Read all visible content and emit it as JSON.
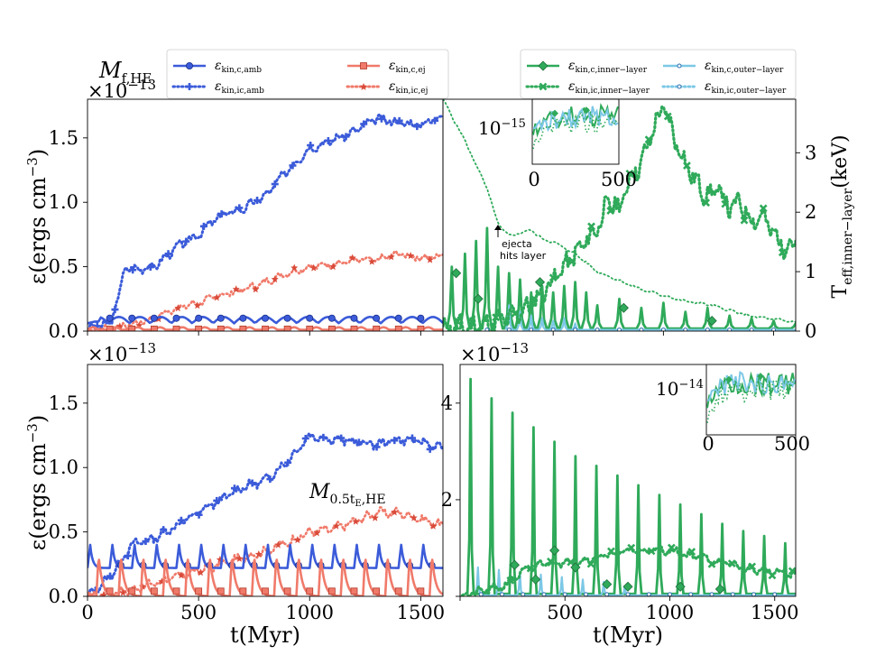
{
  "colors": {
    "amb": "#3b5bd9",
    "ej": "#f07a6a",
    "ej_dark": "#d94b3a",
    "inner": "#2faa5a",
    "outer": "#7cc8e6",
    "outer_dark": "#2a6fb0"
  },
  "legend": {
    "left": [
      {
        "label": "ε",
        "sub": "kin,c,amb"
      },
      {
        "label": "ε",
        "sub": "kin,ic,amb"
      },
      {
        "label": "ε",
        "sub": "kin,c,ej"
      },
      {
        "label": "ε",
        "sub": "kin,ic,ej"
      }
    ],
    "right": [
      {
        "label": "ε",
        "sub": "kin,c,inner−layer"
      },
      {
        "label": "ε",
        "sub": "kin,ic,inner−layer"
      },
      {
        "label": "ε",
        "sub": "kin,c,outer−layer"
      },
      {
        "label": "ε",
        "sub": "kin,ic,outer−layer"
      }
    ]
  },
  "labels": {
    "top_title_main": "M",
    "top_title_sub": "f,HE",
    "bottom_title_main": "M",
    "bottom_title_sub": "0.5t",
    "bottom_title_sub2": "E",
    "bottom_title_sub3": ",HE",
    "ylabel": "ε(ergs cm",
    "ylabel_exp": "−3",
    "ylabel_close": ")",
    "xlabel": "t(Myr)",
    "right_ylabel": "T",
    "right_ylabel_sub": "eff,inner−layer",
    "right_ylabel_unit": "(keV)",
    "multiplier": "×10",
    "multiplier_exp": "−13",
    "annotation_line1": "ejecta",
    "annotation_line2": "hits layer",
    "inset_top_label": "10",
    "inset_top_exp": "−15",
    "inset_bottom_label": "10",
    "inset_bottom_exp": "−14"
  },
  "chart_data": [
    {
      "panel": "top-left",
      "type": "line",
      "xlim": [
        0,
        1600
      ],
      "ylim": [
        0,
        1.8
      ],
      "yscale_note": "×10^-13",
      "xticks": [],
      "yticks": [
        "0.0",
        "0.5",
        "1.0",
        "1.5"
      ],
      "series": [
        {
          "name": "ε kin,ic,amb",
          "style": "dotted",
          "color_key": "amb",
          "x": [
            0,
            100,
            130,
            170,
            200,
            300,
            400,
            500,
            550,
            600,
            700,
            800,
            900,
            1000,
            1100,
            1200,
            1300,
            1400,
            1500,
            1600
          ],
          "values": [
            0.02,
            0.05,
            0.2,
            0.5,
            0.48,
            0.5,
            0.65,
            0.75,
            0.83,
            0.9,
            0.95,
            1.05,
            1.25,
            1.42,
            1.48,
            1.55,
            1.65,
            1.62,
            1.6,
            1.68
          ]
        },
        {
          "name": "ε kin,ic,ej",
          "style": "dotted",
          "color_key": "ej",
          "x": [
            0,
            200,
            300,
            400,
            500,
            600,
            700,
            800,
            900,
            1000,
            1100,
            1200,
            1300,
            1400,
            1500,
            1600
          ],
          "values": [
            0.0,
            0.05,
            0.1,
            0.18,
            0.22,
            0.28,
            0.32,
            0.38,
            0.45,
            0.5,
            0.52,
            0.55,
            0.55,
            0.6,
            0.57,
            0.58
          ]
        },
        {
          "name": "ε kin,c,amb",
          "style": "solid",
          "color_key": "amb",
          "x": [
            0,
            100,
            200,
            300,
            400,
            500,
            600,
            700,
            800,
            900,
            1000,
            1100,
            1200,
            1300,
            1400,
            1500,
            1600
          ],
          "values": [
            0.05,
            0.08,
            0.12,
            0.09,
            0.1,
            0.11,
            0.1,
            0.09,
            0.1,
            0.1,
            0.09,
            0.1,
            0.1,
            0.09,
            0.1,
            0.09,
            0.07
          ]
        },
        {
          "name": "ε kin,c,ej",
          "style": "solid",
          "color_key": "ej",
          "x": [
            0,
            200,
            400,
            600,
            800,
            1000,
            1200,
            1400,
            1600
          ],
          "values": [
            0.0,
            0.02,
            0.02,
            0.02,
            0.02,
            0.02,
            0.02,
            0.02,
            0.02
          ]
        }
      ]
    },
    {
      "panel": "top-right",
      "type": "line",
      "xlim": [
        0,
        1600
      ],
      "ylim": [
        0,
        1.8
      ],
      "right_axis": {
        "label": "T eff,inner−layer (keV)",
        "ylim": [
          0,
          3.9
        ],
        "yticks": [
          "0",
          "1",
          "2",
          "3"
        ]
      },
      "series": [
        {
          "name": "ε kin,c,inner−layer",
          "style": "solid",
          "color_key": "inner",
          "peaks_x": [
            40,
            100,
            150,
            200,
            250,
            300,
            350,
            400,
            450,
            500,
            550,
            600,
            650,
            700,
            800,
            900,
            1000,
            1100,
            1200,
            1300,
            1400,
            1500,
            1600
          ],
          "peaks_y": [
            0.5,
            0.6,
            0.7,
            0.8,
            0.5,
            0.45,
            0.4,
            0.3,
            0.35,
            0.3,
            0.35,
            0.38,
            0.3,
            0.2,
            0.25,
            0.18,
            0.22,
            0.15,
            0.18,
            0.12,
            0.1,
            0.08,
            0.06
          ]
        },
        {
          "name": "ε kin,ic,inner−layer",
          "style": "dotted",
          "color_key": "inner",
          "x": [
            0,
            200,
            300,
            400,
            500,
            600,
            700,
            750,
            800,
            850,
            900,
            950,
            1000,
            1050,
            1100,
            1150,
            1200,
            1250,
            1300,
            1350,
            1400,
            1450,
            1500,
            1550,
            1600
          ],
          "values": [
            0.02,
            0.05,
            0.1,
            0.2,
            0.4,
            0.6,
            0.8,
            1.0,
            0.95,
            1.2,
            1.3,
            1.55,
            1.75,
            1.5,
            1.3,
            1.15,
            1.05,
            1.1,
            0.95,
            1.0,
            0.85,
            0.9,
            0.75,
            0.65,
            0.7
          ]
        },
        {
          "name": "ε kin,c,outer−layer",
          "style": "solid",
          "color_key": "outer",
          "peaks_x": [
            300,
            350,
            400,
            450,
            500,
            550,
            600
          ],
          "peaks_y": [
            0.2,
            0.15,
            0.12,
            0.1,
            0.08,
            0.1,
            0.06
          ]
        },
        {
          "name": "T eff,inner−layer",
          "style": "dotted",
          "color_key": "inner",
          "axis": "right",
          "x": [
            0,
            100,
            200,
            250,
            300,
            350,
            400,
            450,
            500,
            600,
            700,
            800,
            900,
            1000,
            1100,
            1200,
            1300,
            1400,
            1500,
            1600
          ],
          "values": [
            3.9,
            3.2,
            2.4,
            1.8,
            1.6,
            1.65,
            1.7,
            1.55,
            1.5,
            1.3,
            1.0,
            0.85,
            0.7,
            0.6,
            0.5,
            0.45,
            0.35,
            0.25,
            0.2,
            0.15
          ]
        }
      ],
      "inset": {
        "ylabel": "10^-15",
        "xlim": [
          0,
          500
        ],
        "xticks": [
          "0",
          "500"
        ]
      },
      "annotation": {
        "text": "ejecta hits layer",
        "x": 250
      }
    },
    {
      "panel": "bottom-left",
      "type": "line",
      "xlim": [
        0,
        1600
      ],
      "ylim": [
        0,
        1.8
      ],
      "yticks": [
        "0.0",
        "0.5",
        "1.0",
        "1.5"
      ],
      "xticks": [
        "0",
        "500",
        "1000",
        "1500"
      ],
      "series": [
        {
          "name": "ε kin,ic,amb",
          "style": "dotted",
          "color_key": "amb",
          "x": [
            0,
            100,
            200,
            300,
            400,
            500,
            600,
            700,
            800,
            900,
            1000,
            1100,
            1200,
            1300,
            1400,
            1500,
            1600
          ],
          "values": [
            0.0,
            0.15,
            0.4,
            0.45,
            0.55,
            0.65,
            0.75,
            0.85,
            0.9,
            1.05,
            1.25,
            1.22,
            1.2,
            1.18,
            1.22,
            1.2,
            1.15
          ]
        },
        {
          "name": "ε kin,ic,ej",
          "style": "dotted",
          "color_key": "ej",
          "x": [
            0,
            200,
            300,
            400,
            500,
            600,
            700,
            800,
            900,
            1000,
            1100,
            1200,
            1300,
            1400,
            1500,
            1600
          ],
          "values": [
            0.0,
            0.05,
            0.1,
            0.15,
            0.2,
            0.25,
            0.3,
            0.35,
            0.42,
            0.5,
            0.52,
            0.58,
            0.65,
            0.65,
            0.6,
            0.55
          ]
        },
        {
          "name": "ε kin,c,amb",
          "style": "solid",
          "color_key": "amb",
          "x": [
            0,
            1600
          ],
          "values": [
            0.25,
            0.22
          ],
          "periodic_peak": 0.4,
          "period": 100
        },
        {
          "name": "ε kin,c,ej",
          "style": "solid",
          "color_key": "ej",
          "x": [
            0,
            1600
          ],
          "values": [
            0.0,
            0.0
          ],
          "periodic_peak": 0.35,
          "period": 100
        }
      ]
    },
    {
      "panel": "bottom-right",
      "type": "line",
      "xlim": [
        0,
        1600
      ],
      "ylim": [
        0,
        4.8
      ],
      "yticks": [
        "2",
        "4"
      ],
      "xticks": [
        "500",
        "1000",
        "1500"
      ],
      "series": [
        {
          "name": "ε kin,c,inner−layer",
          "style": "solid",
          "color_key": "inner",
          "peaks_x": [
            50,
            150,
            250,
            350,
            450,
            550,
            650,
            750,
            850,
            950,
            1050,
            1150,
            1250,
            1350,
            1450,
            1550
          ],
          "peaks_y": [
            4.5,
            4.1,
            3.8,
            3.5,
            3.2,
            2.9,
            2.7,
            2.5,
            2.3,
            2.1,
            1.9,
            1.7,
            1.5,
            1.35,
            1.25,
            1.1
          ]
        },
        {
          "name": "ε kin,ic,inner−layer",
          "style": "dotted",
          "color_key": "inner",
          "x": [
            0,
            200,
            300,
            400,
            500,
            600,
            700,
            800,
            900,
            1000,
            1100,
            1200,
            1300,
            1400,
            1500,
            1600
          ],
          "values": [
            0.0,
            0.2,
            0.5,
            0.7,
            0.7,
            0.75,
            0.85,
            0.95,
            0.95,
            0.95,
            0.85,
            0.75,
            0.65,
            0.55,
            0.5,
            0.45
          ]
        },
        {
          "name": "ε kin,c,outer−layer",
          "style": "solid",
          "color_key": "outer",
          "peaks_x": [
            50,
            150,
            250,
            350,
            450,
            550,
            650,
            750
          ],
          "peaks_y": [
            0.6,
            0.55,
            0.5,
            0.45,
            0.4,
            0.35,
            0.3,
            0.2
          ]
        }
      ],
      "inset": {
        "ylabel": "10^-14",
        "xlim": [
          0,
          500
        ],
        "xticks": [
          "0",
          "500"
        ]
      }
    }
  ]
}
